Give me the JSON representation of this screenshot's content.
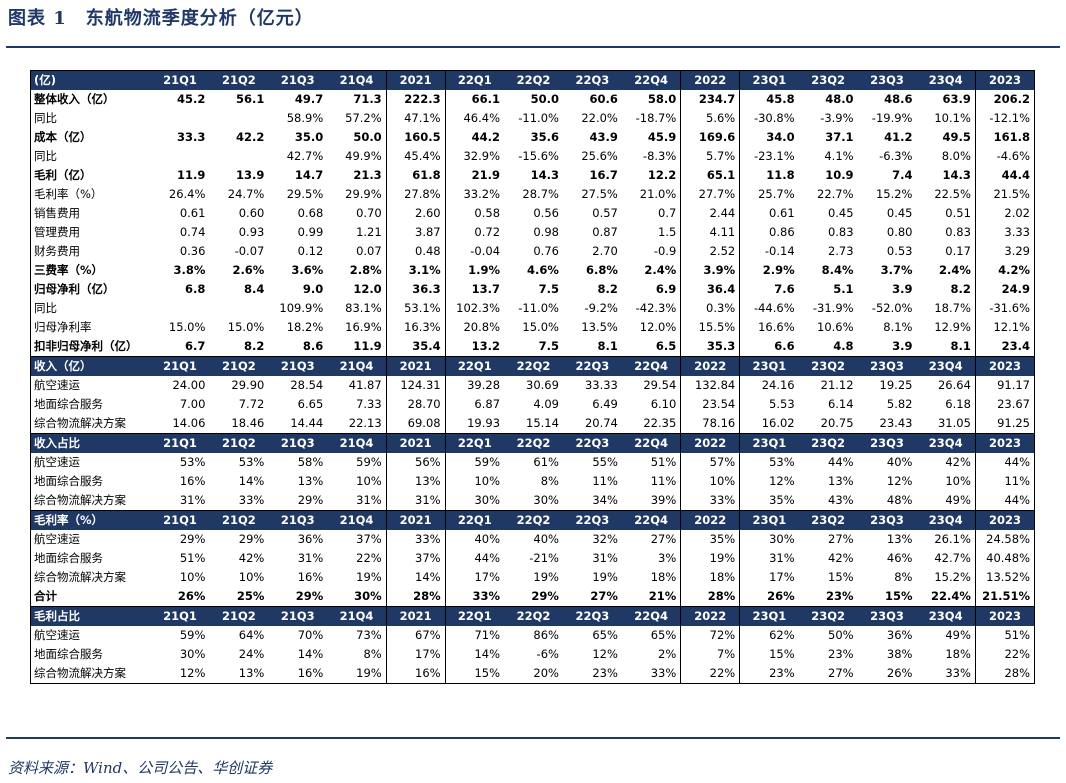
{
  "title": "图表 1　东航物流季度分析（亿元）",
  "source": "资料来源：Wind、公司公告、华创证券",
  "table": {
    "columns": [
      "21Q1",
      "21Q2",
      "21Q3",
      "21Q4",
      "2021",
      "22Q1",
      "22Q2",
      "22Q3",
      "22Q4",
      "2022",
      "23Q1",
      "23Q2",
      "23Q3",
      "23Q4",
      "2023"
    ],
    "sections": [
      {
        "header": "(亿)",
        "rows": [
          {
            "label": "整体收入（亿）",
            "bold": true,
            "cells": [
              "45.2",
              "56.1",
              "49.7",
              "71.3",
              "222.3",
              "66.1",
              "50.0",
              "60.6",
              "58.0",
              "234.7",
              "45.8",
              "48.0",
              "48.6",
              "63.9",
              "206.2"
            ]
          },
          {
            "label": "同比",
            "cells": [
              null,
              null,
              "58.9%",
              "57.2%",
              "47.1%",
              "46.4%",
              "-11.0%",
              "22.0%",
              "-18.7%",
              "5.6%",
              "-30.8%",
              "-3.9%",
              "-19.9%",
              "10.1%",
              "-12.1%"
            ]
          },
          {
            "label": "成本（亿）",
            "bold": true,
            "cells": [
              "33.3",
              "42.2",
              "35.0",
              "50.0",
              "160.5",
              "44.2",
              "35.6",
              "43.9",
              "45.9",
              "169.6",
              "34.0",
              "37.1",
              "41.2",
              "49.5",
              "161.8"
            ]
          },
          {
            "label": "同比",
            "cells": [
              null,
              null,
              "42.7%",
              "49.9%",
              "45.4%",
              "32.9%",
              "-15.6%",
              "25.6%",
              "-8.3%",
              "5.7%",
              "-23.1%",
              "4.1%",
              "-6.3%",
              "8.0%",
              "-4.6%"
            ]
          },
          {
            "label": "毛利（亿）",
            "bold": true,
            "cells": [
              "11.9",
              "13.9",
              "14.7",
              "21.3",
              "61.8",
              "21.9",
              "14.3",
              "16.7",
              "12.2",
              "65.1",
              "11.8",
              "10.9",
              "7.4",
              "14.3",
              "44.4"
            ]
          },
          {
            "label": "毛利率（%）",
            "cells": [
              "26.4%",
              "24.7%",
              "29.5%",
              "29.9%",
              "27.8%",
              "33.2%",
              "28.7%",
              "27.5%",
              "21.0%",
              "27.7%",
              "25.7%",
              "22.7%",
              "15.2%",
              "22.5%",
              "21.5%"
            ]
          },
          {
            "label": "销售费用",
            "cells": [
              "0.61",
              "0.60",
              "0.68",
              "0.70",
              "2.60",
              "0.58",
              "0.56",
              "0.57",
              "0.7",
              "2.44",
              "0.61",
              "0.45",
              "0.45",
              "0.51",
              "2.02"
            ]
          },
          {
            "label": "管理费用",
            "cells": [
              "0.74",
              "0.93",
              "0.99",
              "1.21",
              "3.87",
              "0.72",
              "0.98",
              "0.87",
              "1.5",
              "4.11",
              "0.86",
              "0.83",
              "0.80",
              "0.83",
              "3.33"
            ]
          },
          {
            "label": "财务费用",
            "cells": [
              "0.36",
              "-0.07",
              "0.12",
              "0.07",
              "0.48",
              "-0.04",
              "0.76",
              "2.70",
              "-0.9",
              "2.52",
              "-0.14",
              "2.73",
              "0.53",
              "0.17",
              "3.29"
            ]
          },
          {
            "label": "三费率（%）",
            "bold": true,
            "cells": [
              "3.8%",
              "2.6%",
              "3.6%",
              "2.8%",
              "3.1%",
              "1.9%",
              "4.6%",
              "6.8%",
              "2.4%",
              "3.9%",
              "2.9%",
              "8.4%",
              "3.7%",
              "2.4%",
              "4.2%"
            ]
          },
          {
            "label": "归母净利（亿）",
            "bold": true,
            "cells": [
              "6.8",
              "8.4",
              "9.0",
              "12.0",
              "36.3",
              "13.7",
              "7.5",
              "8.2",
              "6.9",
              "36.4",
              "7.6",
              "5.1",
              "3.9",
              "8.2",
              "24.9"
            ]
          },
          {
            "label": "同比",
            "cells": [
              null,
              null,
              "109.9%",
              "83.1%",
              "53.1%",
              "102.3%",
              "-11.0%",
              "-9.2%",
              "-42.3%",
              "0.3%",
              "-44.6%",
              "-31.9%",
              "-52.0%",
              "18.7%",
              "-31.6%"
            ]
          },
          {
            "label": "归母净利率",
            "cells": [
              "15.0%",
              "15.0%",
              "18.2%",
              "16.9%",
              "16.3%",
              "20.8%",
              "15.0%",
              "13.5%",
              "12.0%",
              "15.5%",
              "16.6%",
              "10.6%",
              "8.1%",
              "12.9%",
              "12.1%"
            ]
          },
          {
            "label": "扣非归母净利（亿）",
            "bold": true,
            "cells": [
              "6.7",
              "8.2",
              "8.6",
              "11.9",
              "35.4",
              "13.2",
              "7.5",
              "8.1",
              "6.5",
              "35.3",
              "6.6",
              "4.8",
              "3.9",
              "8.1",
              "23.4"
            ]
          }
        ]
      },
      {
        "header": "收入（亿）",
        "rows": [
          {
            "label": "航空速运",
            "cells": [
              "24.00",
              "29.90",
              "28.54",
              "41.87",
              "124.31",
              "39.28",
              "30.69",
              "33.33",
              "29.54",
              "132.84",
              "24.16",
              "21.12",
              "19.25",
              "26.64",
              "91.17"
            ]
          },
          {
            "label": "地面综合服务",
            "cells": [
              "7.00",
              "7.72",
              "6.65",
              "7.33",
              "28.70",
              "6.87",
              "4.09",
              "6.49",
              "6.10",
              "23.54",
              "5.53",
              "6.14",
              "5.82",
              "6.18",
              "23.67"
            ]
          },
          {
            "label": "综合物流解决方案",
            "cells": [
              "14.06",
              "18.46",
              "14.44",
              "22.13",
              "69.08",
              "19.93",
              "15.14",
              "20.74",
              "22.35",
              "78.16",
              "16.02",
              "20.75",
              "23.43",
              "31.05",
              "91.25"
            ]
          }
        ]
      },
      {
        "header": "收入占比",
        "rows": [
          {
            "label": "航空速运",
            "cells": [
              "53%",
              "53%",
              "58%",
              "59%",
              "56%",
              "59%",
              "61%",
              "55%",
              "51%",
              "57%",
              "53%",
              "44%",
              "40%",
              "42%",
              "44%"
            ]
          },
          {
            "label": "地面综合服务",
            "cells": [
              "16%",
              "14%",
              "13%",
              "10%",
              "13%",
              "10%",
              "8%",
              "11%",
              "11%",
              "10%",
              "12%",
              "13%",
              "12%",
              "10%",
              "11%"
            ]
          },
          {
            "label": "综合物流解决方案",
            "cells": [
              "31%",
              "33%",
              "29%",
              "31%",
              "31%",
              "30%",
              "30%",
              "34%",
              "39%",
              "33%",
              "35%",
              "43%",
              "48%",
              "49%",
              "44%"
            ]
          }
        ]
      },
      {
        "header": "毛利率（%）",
        "rows": [
          {
            "label": "航空速运",
            "cells": [
              "29%",
              "29%",
              "36%",
              "37%",
              "33%",
              "40%",
              "40%",
              "32%",
              "27%",
              "35%",
              "30%",
              "27%",
              "13%",
              "26.1%",
              "24.58%"
            ]
          },
          {
            "label": "地面综合服务",
            "cells": [
              "51%",
              "42%",
              "31%",
              "22%",
              "37%",
              "44%",
              "-21%",
              "31%",
              "3%",
              "19%",
              "31%",
              "42%",
              "46%",
              "42.7%",
              "40.48%"
            ]
          },
          {
            "label": "综合物流解决方案",
            "cells": [
              "10%",
              "10%",
              "16%",
              "19%",
              "14%",
              "17%",
              "19%",
              "19%",
              "18%",
              "18%",
              "17%",
              "15%",
              "8%",
              "15.2%",
              "13.52%"
            ]
          },
          {
            "label": "合计",
            "bold": true,
            "cells": [
              "26%",
              "25%",
              "29%",
              "30%",
              "28%",
              "33%",
              "29%",
              "27%",
              "21%",
              "28%",
              "26%",
              "23%",
              "15%",
              "22.4%",
              "21.51%"
            ]
          }
        ]
      },
      {
        "header": "毛利占比",
        "rows": [
          {
            "label": "航空速运",
            "cells": [
              "59%",
              "64%",
              "70%",
              "73%",
              "67%",
              "71%",
              "86%",
              "65%",
              "65%",
              "72%",
              "62%",
              "50%",
              "36%",
              "49%",
              "51%"
            ]
          },
          {
            "label": "地面综合服务",
            "cells": [
              "30%",
              "24%",
              "14%",
              "8%",
              "17%",
              "14%",
              "-6%",
              "12%",
              "2%",
              "7%",
              "15%",
              "23%",
              "38%",
              "18%",
              "22%"
            ]
          },
          {
            "label": "综合物流解决方案",
            "cells": [
              "12%",
              "13%",
              "16%",
              "19%",
              "16%",
              "15%",
              "20%",
              "23%",
              "33%",
              "22%",
              "23%",
              "27%",
              "26%",
              "33%",
              "28%"
            ]
          }
        ]
      }
    ]
  }
}
